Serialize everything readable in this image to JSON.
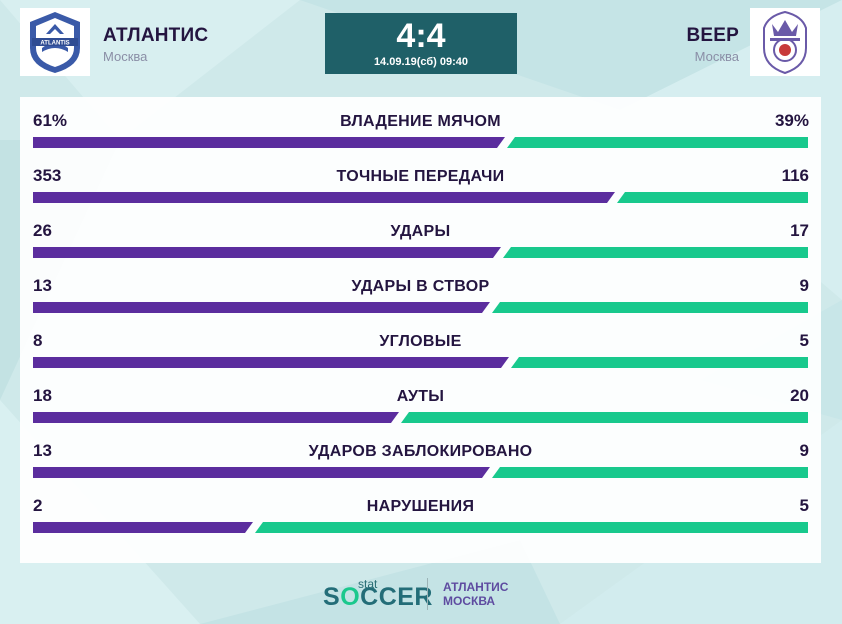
{
  "match": {
    "home": {
      "name": "АТЛАНТИС",
      "city": "Москва",
      "logo_icon": "atlantis-crest-icon"
    },
    "away": {
      "name": "ВЕЕР",
      "city": "Москва",
      "logo_icon": "veer-crest-icon"
    },
    "score": "4:4",
    "datetime": "14.09.19(сб) 09:40"
  },
  "colors": {
    "home_bar": "#5b2d9e",
    "away_bar": "#18c98d",
    "score_bg": "#1f6068",
    "text": "#241540"
  },
  "stats": [
    {
      "label": "ВЛАДЕНИЕ МЯЧОМ",
      "left": "61%",
      "right": "39%",
      "home_share": 0.61
    },
    {
      "label": "ТОЧНЫЕ ПЕРЕДАЧИ",
      "left": "353",
      "right": "116",
      "home_share": 0.7527
    },
    {
      "label": "УДАРЫ",
      "left": "26",
      "right": "17",
      "home_share": 0.6047
    },
    {
      "label": "УДАРЫ В СТВОР",
      "left": "13",
      "right": "9",
      "home_share": 0.5909
    },
    {
      "label": "УГЛОВЫЕ",
      "left": "8",
      "right": "5",
      "home_share": 0.6154
    },
    {
      "label": "АУТЫ",
      "left": "18",
      "right": "20",
      "home_share": 0.4737
    },
    {
      "label": "УДАРОВ ЗАБЛОКИРОВАНО",
      "left": "13",
      "right": "9",
      "home_share": 0.5909
    },
    {
      "label": "НАРУШЕНИЯ",
      "left": "2",
      "right": "5",
      "home_share": 0.2857
    }
  ],
  "footer": {
    "brand_small": "stat",
    "brand_main_prefix": "S",
    "brand_main_o": "O",
    "brand_main_suffix": "CCER",
    "team_line1": "АТЛАНТИС",
    "team_line2": "МОСКВА"
  }
}
